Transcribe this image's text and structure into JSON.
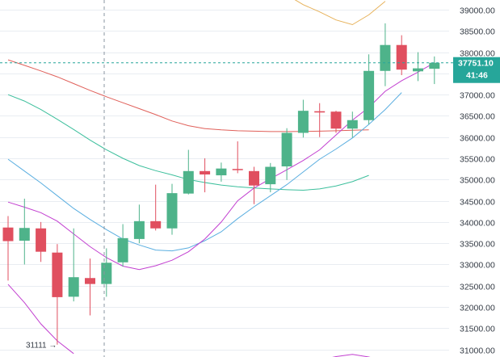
{
  "chart_data": {
    "type": "candlestick",
    "y_axis": {
      "ticks": [
        "39000.00",
        "38500.00",
        "38000.00",
        "37500.00",
        "37000.00",
        "36500.00",
        "36000.00",
        "35500.00",
        "35000.00",
        "34500.00",
        "34000.00",
        "33500.00",
        "33000.00",
        "32500.00",
        "32000.00",
        "31500.00",
        "31000.00"
      ],
      "ylim": [
        30820,
        39230
      ],
      "grid": true,
      "position": "right"
    },
    "last_price": {
      "label": "37751.10",
      "value": 37751.1,
      "color": "#26a69a"
    },
    "countdown": {
      "label": "41:46"
    },
    "low_marker": {
      "label": "31111 →",
      "value": 31111
    },
    "colors": {
      "up": "#4eb38a",
      "down": "#e04f5f",
      "ma_red": "#e0605a",
      "ma_teal": "#3cbf9c",
      "ma_blue": "#5aaee0",
      "ma_magenta": "#c23fd0",
      "band_upper": "#e7b25a"
    },
    "candles": [
      {
        "o": 33870,
        "h": 34140,
        "l": 32620,
        "c": 33550
      },
      {
        "o": 33560,
        "h": 34550,
        "l": 33000,
        "c": 33860
      },
      {
        "o": 33850,
        "h": 34000,
        "l": 33060,
        "c": 33300
      },
      {
        "o": 33280,
        "h": 33480,
        "l": 31111,
        "c": 32230
      },
      {
        "o": 32240,
        "h": 33850,
        "l": 32130,
        "c": 32700
      },
      {
        "o": 32680,
        "h": 33140,
        "l": 31800,
        "c": 32540
      },
      {
        "o": 32540,
        "h": 33380,
        "l": 32240,
        "c": 33040
      },
      {
        "o": 33050,
        "h": 33950,
        "l": 32950,
        "c": 33620
      },
      {
        "o": 33600,
        "h": 34410,
        "l": 33500,
        "c": 34020
      },
      {
        "o": 34020,
        "h": 34880,
        "l": 33800,
        "c": 33850
      },
      {
        "o": 33850,
        "h": 34900,
        "l": 33700,
        "c": 34680
      },
      {
        "o": 34670,
        "h": 35700,
        "l": 34650,
        "c": 35200
      },
      {
        "o": 35200,
        "h": 35500,
        "l": 34700,
        "c": 35120
      },
      {
        "o": 35100,
        "h": 35400,
        "l": 34950,
        "c": 35260
      },
      {
        "o": 35250,
        "h": 35900,
        "l": 35150,
        "c": 35230
      },
      {
        "o": 35200,
        "h": 35300,
        "l": 34420,
        "c": 34860
      },
      {
        "o": 34890,
        "h": 35390,
        "l": 34700,
        "c": 35300
      },
      {
        "o": 35310,
        "h": 36210,
        "l": 34990,
        "c": 36100
      },
      {
        "o": 36100,
        "h": 36880,
        "l": 35990,
        "c": 36620
      },
      {
        "o": 36610,
        "h": 36800,
        "l": 36000,
        "c": 36580
      },
      {
        "o": 36600,
        "h": 36620,
        "l": 36100,
        "c": 36200
      },
      {
        "o": 36200,
        "h": 36600,
        "l": 35990,
        "c": 36400
      },
      {
        "o": 36400,
        "h": 37950,
        "l": 36300,
        "c": 37560
      },
      {
        "o": 37560,
        "h": 38680,
        "l": 37200,
        "c": 38170
      },
      {
        "o": 38170,
        "h": 38400,
        "l": 37460,
        "c": 37590
      },
      {
        "o": 37550,
        "h": 38000,
        "l": 37320,
        "c": 37620
      },
      {
        "o": 37610,
        "h": 37900,
        "l": 37250,
        "c": 37751
      }
    ],
    "moving_averages": [
      {
        "color": "#e0605a",
        "values": [
          [
            0,
            37820
          ],
          [
            2,
            37690
          ],
          [
            4,
            37560
          ],
          [
            6,
            37420
          ],
          [
            8,
            37260
          ],
          [
            10,
            37100
          ],
          [
            12,
            36950
          ],
          [
            14,
            36810
          ],
          [
            16,
            36670
          ],
          [
            18,
            36530
          ],
          [
            20,
            36380
          ],
          [
            22,
            36270
          ],
          [
            24,
            36200
          ],
          [
            26,
            36170
          ],
          [
            28,
            36150
          ],
          [
            30,
            36140
          ],
          [
            32,
            36130
          ],
          [
            34,
            36130
          ],
          [
            36,
            36135
          ],
          [
            38,
            36140
          ],
          [
            40,
            36150
          ],
          [
            42,
            36160
          ],
          [
            44,
            36170
          ]
        ]
      },
      {
        "color": "#3cbf9c",
        "values": [
          [
            0,
            37000
          ],
          [
            2,
            36850
          ],
          [
            4,
            36650
          ],
          [
            6,
            36420
          ],
          [
            8,
            36180
          ],
          [
            10,
            35930
          ],
          [
            12,
            35700
          ],
          [
            14,
            35500
          ],
          [
            16,
            35330
          ],
          [
            18,
            35210
          ],
          [
            20,
            35110
          ],
          [
            22,
            35000
          ],
          [
            24,
            34930
          ],
          [
            26,
            34870
          ],
          [
            28,
            34830
          ],
          [
            30,
            34800
          ],
          [
            32,
            34780
          ],
          [
            34,
            34760
          ],
          [
            36,
            34750
          ],
          [
            38,
            34780
          ],
          [
            40,
            34850
          ],
          [
            42,
            34950
          ],
          [
            44,
            35100
          ]
        ]
      },
      {
        "color": "#5aaee0",
        "values": [
          [
            0,
            35480
          ],
          [
            2,
            35200
          ],
          [
            4,
            34920
          ],
          [
            6,
            34620
          ],
          [
            8,
            34320
          ],
          [
            10,
            34060
          ],
          [
            12,
            33820
          ],
          [
            14,
            33600
          ],
          [
            16,
            33460
          ],
          [
            18,
            33340
          ],
          [
            20,
            33320
          ],
          [
            22,
            33390
          ],
          [
            24,
            33560
          ],
          [
            26,
            33770
          ],
          [
            28,
            34080
          ],
          [
            30,
            34360
          ],
          [
            32,
            34620
          ],
          [
            34,
            34880
          ],
          [
            36,
            35180
          ],
          [
            38,
            35480
          ],
          [
            40,
            35720
          ],
          [
            42,
            35980
          ],
          [
            44,
            36300
          ],
          [
            46,
            36650
          ],
          [
            48,
            37050
          ]
        ]
      },
      {
        "color": "#c23fd0",
        "values": [
          [
            0,
            34470
          ],
          [
            2,
            34350
          ],
          [
            4,
            34220
          ],
          [
            6,
            34020
          ],
          [
            8,
            33720
          ],
          [
            10,
            33420
          ],
          [
            12,
            33160
          ],
          [
            14,
            32960
          ],
          [
            16,
            32880
          ],
          [
            18,
            32970
          ],
          [
            20,
            33100
          ],
          [
            22,
            33300
          ],
          [
            24,
            33600
          ],
          [
            26,
            34000
          ],
          [
            28,
            34500
          ],
          [
            30,
            34800
          ],
          [
            32,
            35020
          ],
          [
            34,
            35230
          ],
          [
            36,
            35450
          ],
          [
            38,
            35700
          ],
          [
            40,
            36050
          ],
          [
            42,
            36400
          ],
          [
            44,
            36700
          ],
          [
            46,
            37080
          ],
          [
            48,
            37330
          ],
          [
            50,
            37530
          ],
          [
            52,
            37751
          ]
        ]
      }
    ],
    "bollinger_lower": [
      [
        0,
        32530
      ],
      [
        2,
        32100
      ],
      [
        4,
        31600
      ],
      [
        6,
        31200
      ],
      [
        8,
        30900
      ]
    ],
    "bollinger_upper": [
      [
        34,
        39350
      ],
      [
        36,
        39120
      ],
      [
        38,
        38950
      ],
      [
        40,
        38760
      ],
      [
        42,
        38650
      ],
      [
        44,
        38880
      ],
      [
        46,
        39200
      ]
    ],
    "bollinger_lower_right": [
      [
        38,
        30750
      ],
      [
        40,
        30830
      ],
      [
        42,
        30880
      ],
      [
        44,
        30820
      ],
      [
        46,
        30720
      ]
    ]
  }
}
